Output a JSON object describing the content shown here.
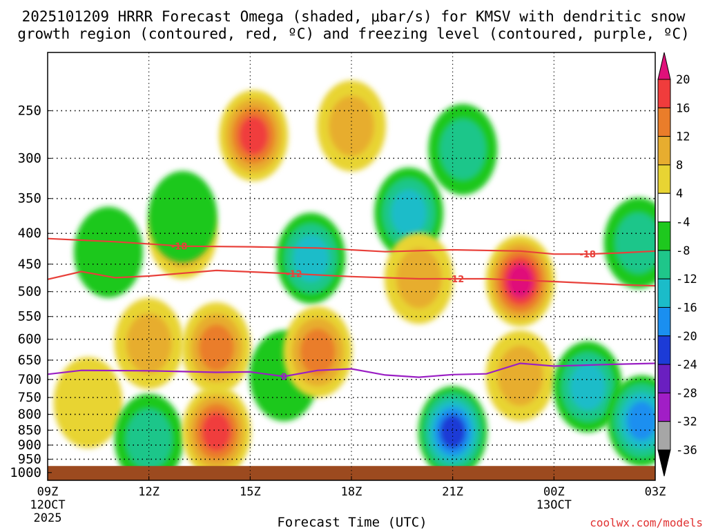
{
  "chart_data": {
    "type": "contour",
    "title_line1": "2025101209 HRRR Forecast Omega (shaded, μbar/s) for KMSV with dendritic snow",
    "title_line2": "growth region (contoured, red, ºC) and freezing level (contoured, purple, ºC)",
    "xlabel": "Forecast Time (UTC)",
    "watermark": "coolwx.com/models",
    "x_ticks": [
      {
        "hour": 0,
        "label": "09Z",
        "date": "12OCT",
        "year": "2025"
      },
      {
        "hour": 3,
        "label": "12Z"
      },
      {
        "hour": 6,
        "label": "15Z"
      },
      {
        "hour": 9,
        "label": "18Z"
      },
      {
        "hour": 12,
        "label": "21Z"
      },
      {
        "hour": 15,
        "label": "00Z",
        "date": "13OCT"
      },
      {
        "hour": 18,
        "label": "03Z"
      }
    ],
    "x_range_hours": [
      0,
      18
    ],
    "y_ticks_hpa": [
      250,
      300,
      350,
      400,
      450,
      500,
      550,
      600,
      650,
      700,
      750,
      800,
      850,
      900,
      950,
      1000
    ],
    "y_range_hpa": [
      200,
      1030
    ],
    "ground_level_hpa": 975,
    "colorbar": {
      "labels": [
        "20",
        "16",
        "12",
        "8",
        "4",
        "-4",
        "-8",
        "-12",
        "-16",
        "-20",
        "-24",
        "-28",
        "-32",
        "-36"
      ],
      "bins": [
        {
          "color": "#e0107a"
        },
        {
          "color": "#f03c3c"
        },
        {
          "color": "#ea7d2a"
        },
        {
          "color": "#e7ad2f"
        },
        {
          "color": "#e8d433"
        },
        {
          "color": "#ffffff"
        },
        {
          "color": "#1ec81e"
        },
        {
          "color": "#1fc68a"
        },
        {
          "color": "#1bbcc9"
        },
        {
          "color": "#1a8ff0"
        },
        {
          "color": "#1c3bd6"
        },
        {
          "color": "#6a1fc0"
        },
        {
          "color": "#a11ec6"
        },
        {
          "color": "#a6a6a6"
        },
        {
          "color": "#000000"
        }
      ]
    },
    "contours": [
      {
        "name": "-18 °C isotherm",
        "color": "#e8403a",
        "label": "-18",
        "label_positions_hours": [
          3.9,
          16.0
        ],
        "points": [
          [
            0,
            408
          ],
          [
            2,
            413
          ],
          [
            4,
            420
          ],
          [
            6,
            421
          ],
          [
            8,
            423
          ],
          [
            10,
            429
          ],
          [
            12,
            426
          ],
          [
            14,
            428
          ],
          [
            15,
            433
          ],
          [
            16,
            433
          ],
          [
            17,
            431
          ],
          [
            18,
            428
          ]
        ]
      },
      {
        "name": "-12 °C isotherm",
        "color": "#e8403a",
        "label": "-12",
        "label_positions_hours": [
          7.3,
          12.1
        ],
        "points": [
          [
            0,
            477
          ],
          [
            1,
            463
          ],
          [
            2,
            474
          ],
          [
            3,
            471
          ],
          [
            5,
            461
          ],
          [
            7,
            466
          ],
          [
            9,
            472
          ],
          [
            11,
            476
          ],
          [
            13,
            476
          ],
          [
            15,
            481
          ],
          [
            17,
            487
          ],
          [
            18,
            489
          ]
        ]
      },
      {
        "name": "0 °C freezing level",
        "color": "#9a1ec4",
        "label": "0",
        "label_positions_hours": [
          7.0
        ],
        "points": [
          [
            0,
            686
          ],
          [
            1,
            676
          ],
          [
            3,
            677
          ],
          [
            5,
            681
          ],
          [
            6,
            680
          ],
          [
            7,
            692
          ],
          [
            8,
            676
          ],
          [
            9,
            672
          ],
          [
            10,
            688
          ],
          [
            11,
            694
          ],
          [
            12,
            687
          ],
          [
            13,
            685
          ],
          [
            14,
            658
          ],
          [
            15,
            665
          ],
          [
            17,
            660
          ],
          [
            18,
            658
          ]
        ]
      }
    ],
    "omega_features": [
      {
        "sign": "up",
        "hour": 1.8,
        "p": 430,
        "peak": -8
      },
      {
        "sign": "down",
        "hour": 1.2,
        "p": 765,
        "peak": 4
      },
      {
        "sign": "up",
        "hour": 3.0,
        "p": 880,
        "peak": -12
      },
      {
        "sign": "down",
        "hour": 4.0,
        "p": 400,
        "peak": 12
      },
      {
        "sign": "down",
        "hour": 3.0,
        "p": 610,
        "peak": 8
      },
      {
        "sign": "up",
        "hour": 4.0,
        "p": 375,
        "peak": -8
      },
      {
        "sign": "down",
        "hour": 6.1,
        "p": 275,
        "peak": 16
      },
      {
        "sign": "down",
        "hour": 5.0,
        "p": 620,
        "peak": 12
      },
      {
        "sign": "down",
        "hour": 5.0,
        "p": 855,
        "peak": 16
      },
      {
        "sign": "up",
        "hour": 7.8,
        "p": 440,
        "peak": -16
      },
      {
        "sign": "up",
        "hour": 7.0,
        "p": 690,
        "peak": -8
      },
      {
        "sign": "down",
        "hour": 8.0,
        "p": 630,
        "peak": 12
      },
      {
        "sign": "down",
        "hour": 9.0,
        "p": 265,
        "peak": 8
      },
      {
        "sign": "up",
        "hour": 10.7,
        "p": 370,
        "peak": -16
      },
      {
        "sign": "down",
        "hour": 11.0,
        "p": 475,
        "peak": 8
      },
      {
        "sign": "up",
        "hour": 12.3,
        "p": 290,
        "peak": -12
      },
      {
        "sign": "up",
        "hour": 12.0,
        "p": 855,
        "peak": -24
      },
      {
        "sign": "down",
        "hour": 14.0,
        "p": 480,
        "peak": 20
      },
      {
        "sign": "down",
        "hour": 14.0,
        "p": 690,
        "peak": 8
      },
      {
        "sign": "up",
        "hour": 16.0,
        "p": 720,
        "peak": -16
      },
      {
        "sign": "up",
        "hour": 17.6,
        "p": 820,
        "peak": -20
      },
      {
        "sign": "up",
        "hour": 17.5,
        "p": 415,
        "peak": -12
      }
    ]
  }
}
